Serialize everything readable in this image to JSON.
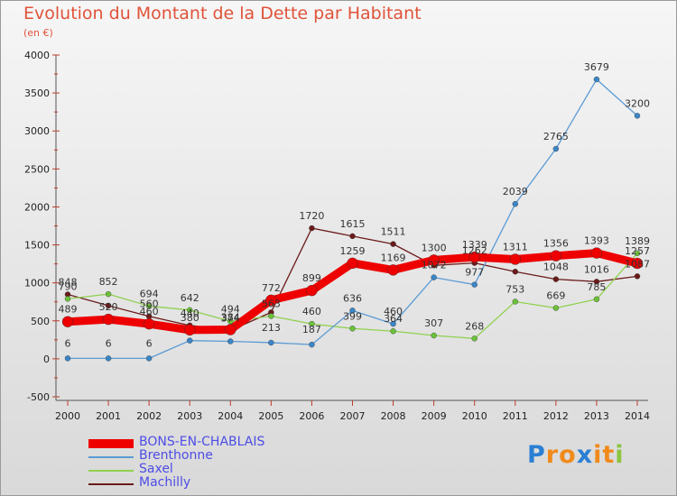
{
  "chart_data": {
    "type": "line",
    "title": "Evolution du Montant de la Dette par Habitant",
    "unit": "(en €)",
    "x": [
      "2000",
      "2001",
      "2002",
      "2003",
      "2004",
      "2005",
      "2006",
      "2007",
      "2008",
      "2009",
      "2010",
      "2011",
      "2012",
      "2013",
      "2014"
    ],
    "ylim": [
      -500,
      4000
    ],
    "yticks": [
      -500,
      0,
      500,
      1000,
      1500,
      2000,
      2500,
      3000,
      3500,
      4000
    ],
    "grid": false,
    "legend_position": "bottom-left",
    "series": [
      {
        "name": "BONS-EN-CHABLAIS",
        "color": "#ee0000",
        "values": [
          489,
          520,
          460,
          380,
          384,
          772,
          899,
          1259,
          1169,
          1300,
          1339,
          1311,
          1356,
          1393,
          1257
        ],
        "labels": [
          "489",
          "520",
          "460",
          "380",
          "384",
          "772",
          "899",
          "1259",
          "1169",
          "1300",
          "1339",
          "1311",
          "1356",
          "1393",
          "1257"
        ]
      },
      {
        "name": "Brenthonne",
        "color": "#5b9bd5",
        "values": [
          6,
          6,
          6,
          240,
          230,
          213,
          187,
          636,
          460,
          1072,
          977,
          2039,
          2765,
          3679,
          3200
        ],
        "labels": [
          "6",
          "6",
          "6",
          "",
          "",
          "213",
          "187",
          "636",
          "460",
          "1072",
          "977",
          "2039",
          "2765",
          "3679",
          "3200"
        ]
      },
      {
        "name": "Saxel",
        "color": "#8fd14f",
        "values": [
          790,
          852,
          694,
          642,
          494,
          563,
          460,
          399,
          364,
          307,
          268,
          753,
          669,
          785,
          1389
        ],
        "labels": [
          "790",
          "852",
          "694",
          "642",
          "494",
          "563",
          "460",
          "399",
          "364",
          "307",
          "268",
          "753",
          "669",
          "785",
          "1389"
        ]
      },
      {
        "name": "Machilly",
        "color": "#6b1a1a",
        "values": [
          848,
          700,
          560,
          440,
          374,
          612,
          1720,
          1615,
          1511,
          1230,
          1262,
          1148,
          1048,
          1016,
          1087
        ],
        "labels": [
          "848",
          "",
          "560",
          "440",
          "374",
          "",
          "1720",
          "1615",
          "1511",
          "",
          "1262",
          "",
          "1048",
          "1016",
          "1087"
        ]
      }
    ]
  },
  "logo": {
    "text": "Proxiti",
    "letters": [
      "P",
      "r",
      "o",
      "x",
      "i",
      "t",
      "i"
    ],
    "colors": [
      "#2a7fd4",
      "#f08a1c",
      "#f08a1c",
      "#2a7fd4",
      "#f08a1c",
      "#f08a1c",
      "#8cc63f"
    ]
  }
}
